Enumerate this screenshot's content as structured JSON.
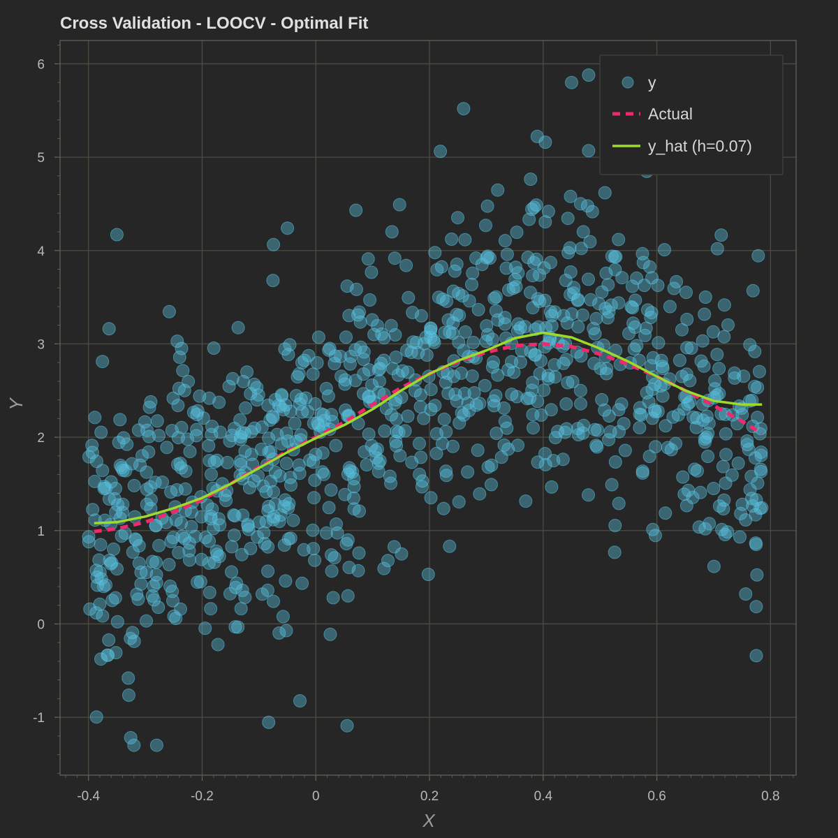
{
  "chart_data": {
    "type": "scatter",
    "title": "Cross Validation - LOOCV - Optimal Fit",
    "xlabel": "X",
    "ylabel": "Y",
    "xlim": [
      -0.45,
      0.845
    ],
    "ylim": [
      -1.62,
      6.25
    ],
    "x_ticks": [
      -0.4,
      -0.2,
      0,
      0.2,
      0.4,
      0.6,
      0.8
    ],
    "x_tick_labels": [
      "-0.4",
      "-0.2",
      "0",
      "0.2",
      "0.4",
      "0.6",
      "0.8"
    ],
    "y_ticks": [
      -1,
      0,
      1,
      2,
      3,
      4,
      5,
      6
    ],
    "y_tick_labels": [
      "-1",
      "0",
      "1",
      "2",
      "3",
      "4",
      "5",
      "6"
    ],
    "grid": true,
    "legend_position": "top-right",
    "colors": {
      "background": "#262626",
      "plot_border": "#5a5a4e",
      "grid": "#4c4c42",
      "scatter": "#59c3e1",
      "actual": "#f0286e",
      "fit": "#9fd92c"
    },
    "series": [
      {
        "name": "y",
        "kind": "scatter",
        "count": 1000,
        "x_range": [
          -0.4,
          0.785
        ],
        "approximate": true,
        "note_points": [
          [
            -0.35,
            4.17
          ],
          [
            -0.05,
            4.24
          ],
          [
            0.26,
            5.52
          ],
          [
            0.45,
            5.8
          ],
          [
            0.48,
            5.88
          ],
          [
            0.055,
            -1.09
          ],
          [
            -0.32,
            -1.3
          ],
          [
            -0.28,
            -1.3
          ],
          [
            0.775,
            -0.34
          ],
          [
            -0.33,
            -0.58
          ]
        ]
      },
      {
        "name": "Actual",
        "kind": "line",
        "style": "dashed",
        "x": [
          -0.39,
          -0.35,
          -0.3,
          -0.25,
          -0.2,
          -0.15,
          -0.1,
          -0.05,
          0,
          0.05,
          0.1,
          0.15,
          0.2,
          0.25,
          0.3,
          0.35,
          0.4,
          0.45,
          0.5,
          0.55,
          0.6,
          0.65,
          0.7,
          0.75,
          0.785
        ],
        "y": [
          0.99,
          1.02,
          1.09,
          1.2,
          1.33,
          1.5,
          1.68,
          1.85,
          2.0,
          2.16,
          2.35,
          2.53,
          2.68,
          2.81,
          2.91,
          2.98,
          3.0,
          2.97,
          2.89,
          2.78,
          2.65,
          2.5,
          2.34,
          2.17,
          2.04
        ]
      },
      {
        "name": "y_hat (h=0.07)",
        "kind": "line",
        "style": "solid",
        "x": [
          -0.39,
          -0.35,
          -0.3,
          -0.25,
          -0.2,
          -0.15,
          -0.1,
          -0.05,
          0,
          0.05,
          0.1,
          0.15,
          0.2,
          0.25,
          0.3,
          0.35,
          0.4,
          0.45,
          0.5,
          0.55,
          0.6,
          0.65,
          0.7,
          0.75,
          0.785
        ],
        "y": [
          1.08,
          1.09,
          1.15,
          1.24,
          1.35,
          1.5,
          1.67,
          1.84,
          1.99,
          2.13,
          2.3,
          2.5,
          2.68,
          2.82,
          2.93,
          3.06,
          3.12,
          3.07,
          2.95,
          2.81,
          2.65,
          2.5,
          2.39,
          2.35,
          2.35
        ]
      }
    ]
  }
}
